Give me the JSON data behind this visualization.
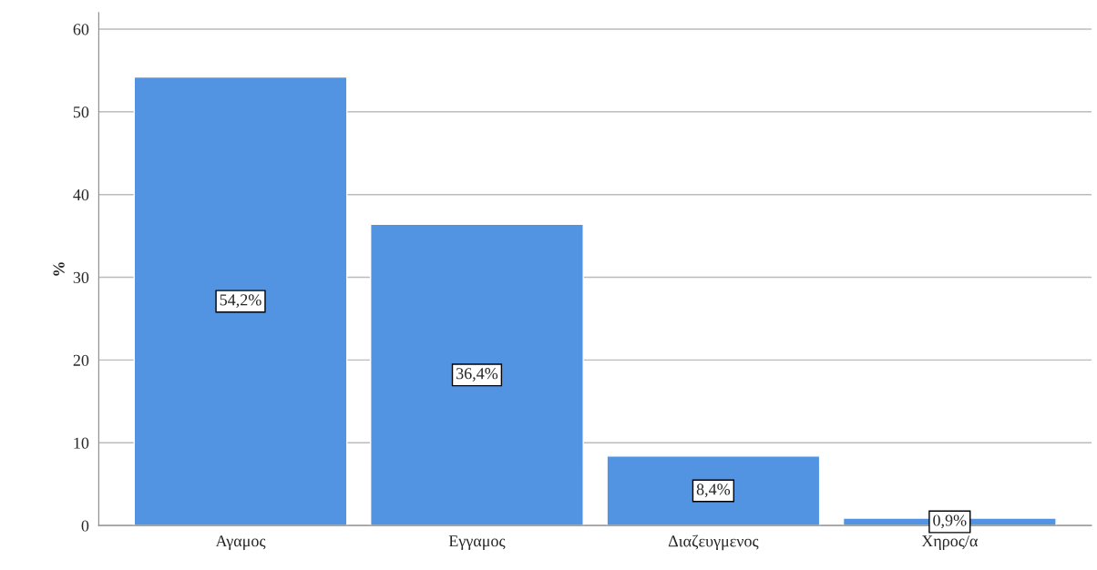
{
  "chart_data": {
    "type": "bar",
    "ylabel": "%",
    "categories": [
      "Αγαμος",
      "Εγγαμος",
      "Διαζευγμενος",
      "Χηρος/α"
    ],
    "values": [
      54.2,
      36.4,
      8.4,
      0.9
    ],
    "value_labels": [
      "54,2%",
      "36,4%",
      "8,4%",
      "0,9%"
    ],
    "color": "#5294e2",
    "ylim": [
      0,
      62
    ],
    "yticks": [
      0,
      10,
      20,
      30,
      40,
      50,
      60
    ],
    "grid": "y",
    "legend": false
  }
}
